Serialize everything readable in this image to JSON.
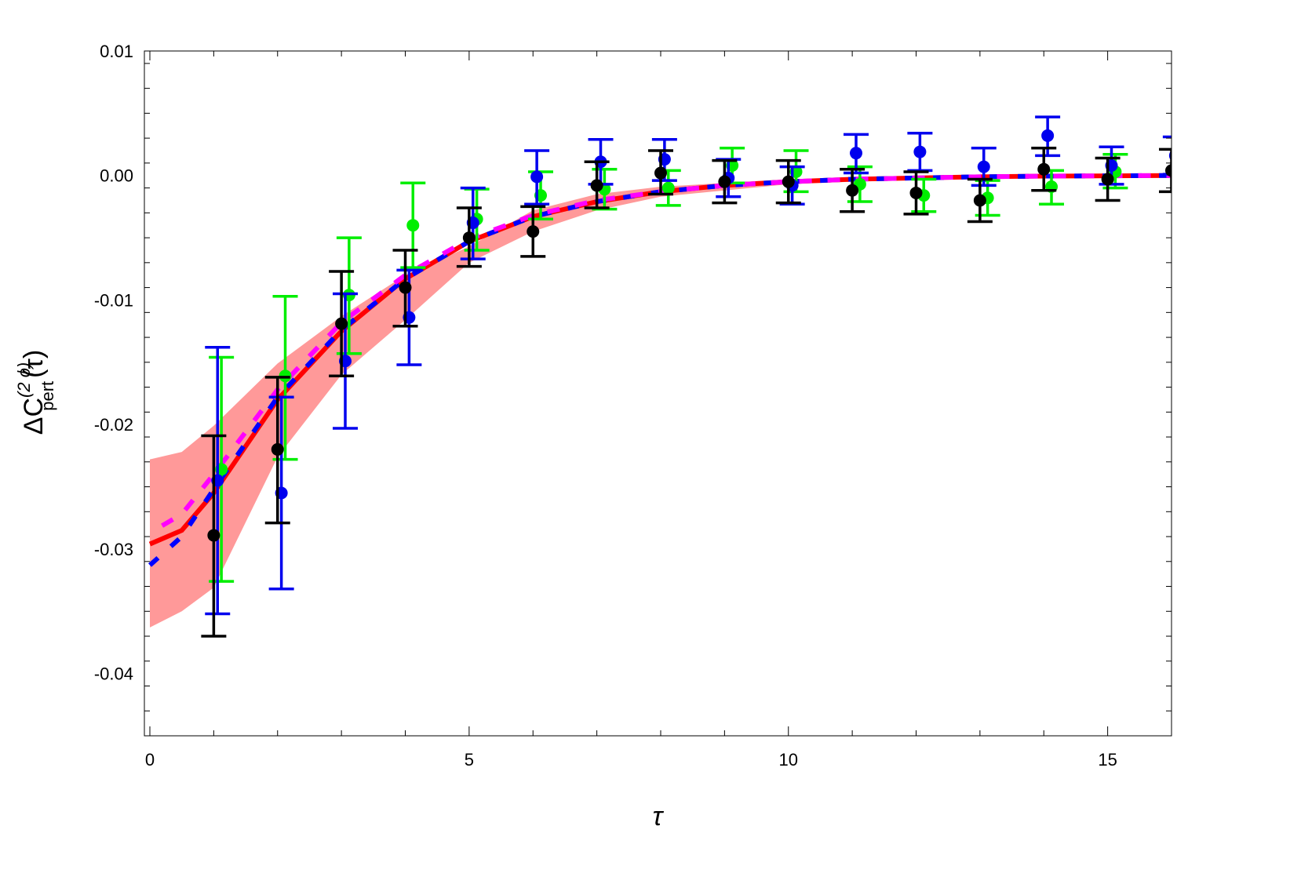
{
  "chart_data": {
    "type": "scatter",
    "title": "",
    "xlabel": "τ",
    "ylabel": {
      "base": "ΔC",
      "sub": "pert",
      "sup": "(2 ϕ)",
      "arg": "(τ)"
    },
    "xlim": [
      -0.086,
      16
    ],
    "ylim": [
      -0.045,
      0.01
    ],
    "x_ticks": [
      0,
      5,
      10,
      15
    ],
    "x_tick_labels": [
      "0",
      "5",
      "10",
      "15"
    ],
    "y_ticks": [
      0.01,
      0.0,
      -0.01,
      -0.02,
      -0.03,
      -0.04
    ],
    "y_tick_labels": [
      "0.01",
      "0.00",
      "-0.01",
      "-0.02",
      "-0.03",
      "-0.04"
    ],
    "grid": false,
    "legend": "none",
    "series_points": [
      {
        "color": "#00ee00",
        "x_offset": 0.12,
        "x": [
          1,
          2,
          3,
          4,
          5,
          6,
          7,
          8,
          9,
          10,
          11,
          12,
          13,
          14,
          15
        ],
        "y": [
          -0.0236,
          -0.0161,
          -0.0096,
          -0.004,
          -0.0035,
          -0.0016,
          -0.0011,
          -0.001,
          0.0008,
          0.0003,
          -0.0007,
          -0.0016,
          -0.0018,
          -0.0009,
          0.0003
        ],
        "lo": [
          -0.0326,
          -0.0228,
          -0.0143,
          -0.0074,
          -0.006,
          -0.0035,
          -0.0027,
          -0.0024,
          -0.0006,
          -0.0013,
          -0.0021,
          -0.0029,
          -0.0032,
          -0.0023,
          -0.001
        ],
        "hi": [
          -0.0146,
          -0.0097,
          -0.005,
          -0.0006,
          -0.0011,
          0.0003,
          0.0005,
          0.0004,
          0.0022,
          0.002,
          0.0007,
          -0.0003,
          -0.0004,
          0.0004,
          0.0017
        ]
      },
      {
        "color": "#0000ee",
        "x_offset": 0.06,
        "x": [
          1,
          2,
          3,
          4,
          5,
          6,
          7,
          8,
          9,
          10,
          11,
          12,
          13,
          14,
          15,
          16
        ],
        "y": [
          -0.0245,
          -0.0255,
          -0.0149,
          -0.0114,
          -0.0038,
          -0.0001,
          0.0011,
          0.0013,
          -0.0002,
          -0.0008,
          0.0018,
          0.0019,
          0.0007,
          0.0032,
          0.0008,
          0.0016
        ],
        "lo": [
          -0.0352,
          -0.0332,
          -0.0203,
          -0.0152,
          -0.0067,
          -0.0023,
          -0.0007,
          -0.0004,
          -0.0017,
          -0.0023,
          0.0002,
          0.0004,
          -0.0008,
          0.0016,
          -0.0007,
          0.0001
        ],
        "hi": [
          -0.0138,
          -0.0178,
          -0.0095,
          -0.0076,
          -0.001,
          0.002,
          0.0029,
          0.0029,
          0.0013,
          0.0007,
          0.0033,
          0.0034,
          0.0022,
          0.0047,
          0.0023,
          0.0031
        ]
      },
      {
        "color": "#000000",
        "x_offset": 0,
        "x": [
          1,
          2,
          3,
          4,
          5,
          6,
          7,
          8,
          9,
          10,
          11,
          12,
          13,
          14,
          15,
          16
        ],
        "y": [
          -0.0289,
          -0.022,
          -0.0119,
          -0.009,
          -0.005,
          -0.0045,
          -0.0008,
          0.0002,
          -0.0005,
          -0.0005,
          -0.0012,
          -0.0014,
          -0.002,
          0.0005,
          -0.0003,
          0.0004
        ],
        "lo": [
          -0.037,
          -0.0279,
          -0.0161,
          -0.0121,
          -0.0073,
          -0.0065,
          -0.0026,
          -0.0015,
          -0.0022,
          -0.0022,
          -0.0029,
          -0.0031,
          -0.0037,
          -0.0012,
          -0.002,
          -0.0013
        ],
        "hi": [
          -0.0209,
          -0.0162,
          -0.0077,
          -0.006,
          -0.0026,
          -0.0025,
          0.0011,
          0.002,
          0.0012,
          0.0012,
          0.0005,
          0.0003,
          -0.0003,
          0.0022,
          0.0014,
          0.0021
        ]
      }
    ],
    "band": {
      "color": "#ff9999",
      "x": [
        0,
        0.5,
        1,
        2,
        3,
        4,
        5,
        6,
        7,
        8,
        10,
        12,
        16
      ],
      "lo": [
        -0.0363,
        -0.035,
        -0.0331,
        -0.0226,
        -0.016,
        -0.0116,
        -0.007,
        -0.0045,
        -0.0028,
        -0.0017,
        -0.0007,
        -0.0003,
        0
      ],
      "hi": [
        -0.0228,
        -0.0222,
        -0.0201,
        -0.0151,
        -0.0113,
        -0.008,
        -0.0057,
        -0.0028,
        -0.0015,
        -0.0009,
        -0.0003,
        -0.0001,
        0
      ]
    },
    "curves": [
      {
        "color": "#ff0000",
        "style": "solid",
        "x": [
          0,
          0.5,
          1,
          2,
          3,
          4,
          5,
          6,
          7,
          8,
          9,
          10,
          11,
          12,
          13,
          14,
          16
        ],
        "y": [
          -0.0296,
          -0.0285,
          -0.0255,
          -0.018,
          -0.0125,
          -0.0083,
          -0.0053,
          -0.0033,
          -0.0021,
          -0.0013,
          -0.0008,
          -0.0005,
          -0.0003,
          -0.0002,
          -0.0001,
          -5e-05,
          0
        ]
      },
      {
        "color": "#0000ff",
        "style": "dashed",
        "x": [
          0,
          0.5,
          1,
          2,
          3,
          4,
          5,
          6,
          7,
          8,
          9,
          10,
          11,
          12,
          13,
          14,
          16
        ],
        "y": [
          -0.0313,
          -0.029,
          -0.0252,
          -0.0178,
          -0.0124,
          -0.0083,
          -0.0053,
          -0.0033,
          -0.0021,
          -0.0013,
          -0.0008,
          -0.0005,
          -0.0003,
          -0.0002,
          -0.0001,
          -5e-05,
          0
        ]
      },
      {
        "color": "#ff00ff",
        "style": "dashed",
        "x": [
          0,
          0.5,
          1,
          2,
          3,
          4,
          5,
          6,
          7,
          8,
          9,
          10,
          11,
          12,
          13,
          14,
          16
        ],
        "y": [
          -0.0287,
          -0.0272,
          -0.024,
          -0.0172,
          -0.0118,
          -0.008,
          -0.0051,
          -0.0032,
          -0.002,
          -0.0013,
          -0.0008,
          -0.0005,
          -0.0003,
          -0.0002,
          -0.0001,
          -5e-05,
          0
        ]
      }
    ]
  }
}
